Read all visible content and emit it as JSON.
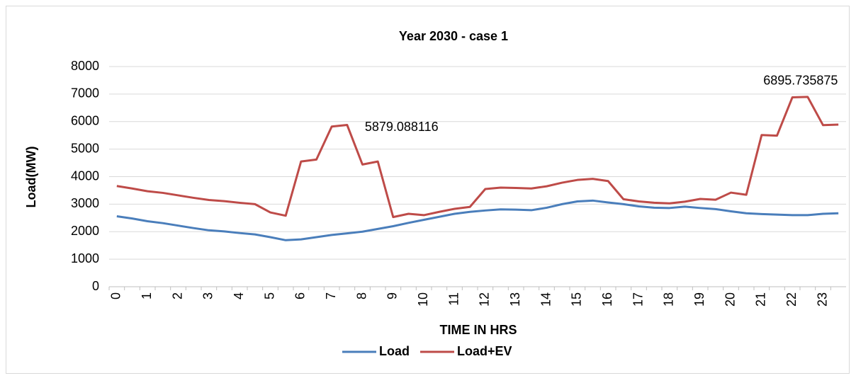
{
  "chart_data": {
    "type": "line",
    "title": "Year 2030 - case 1",
    "x_label": "TIME IN HRS",
    "y_label": "Load(MW)",
    "categories": [
      "0",
      null,
      "1",
      null,
      "2",
      null,
      "3",
      null,
      "4",
      null,
      "5",
      null,
      "6",
      null,
      "7",
      null,
      "8",
      null,
      "9",
      null,
      "10",
      null,
      "11",
      null,
      "12",
      null,
      "13",
      null,
      "14",
      null,
      "15",
      null,
      "16",
      null,
      "17",
      null,
      "18",
      null,
      "19",
      null,
      "20",
      null,
      "21",
      null,
      "22",
      null,
      "23",
      null
    ],
    "series": [
      {
        "name": "Load",
        "color": "#4a7ebb",
        "values": [
          2560,
          2480,
          2380,
          2310,
          2220,
          2130,
          2050,
          2010,
          1950,
          1900,
          1800,
          1690,
          1720,
          1800,
          1880,
          1940,
          2000,
          2100,
          2200,
          2320,
          2430,
          2540,
          2650,
          2720,
          2770,
          2810,
          2800,
          2780,
          2870,
          3000,
          3100,
          3130,
          3060,
          3000,
          2920,
          2870,
          2860,
          2910,
          2860,
          2820,
          2740,
          2670,
          2640,
          2620,
          2600,
          2600,
          2650,
          2670
        ]
      },
      {
        "name": "Load+EV",
        "color": "#be4b48",
        "values": [
          3660,
          3570,
          3470,
          3410,
          3320,
          3230,
          3150,
          3110,
          3050,
          3000,
          2700,
          2580,
          4550,
          4620,
          5820,
          5879.088116,
          4440,
          4550,
          2530,
          2650,
          2600,
          2720,
          2830,
          2900,
          3550,
          3600,
          3590,
          3570,
          3650,
          3780,
          3880,
          3920,
          3840,
          3180,
          3100,
          3050,
          3030,
          3090,
          3190,
          3160,
          3420,
          3340,
          5510,
          5490,
          6880,
          6895.735875,
          5870,
          5890
        ],
        "value_labels": [
          null,
          null,
          null,
          null,
          null,
          null,
          null,
          null,
          null,
          null,
          null,
          null,
          null,
          null,
          null,
          "5879.088116",
          null,
          null,
          null,
          null,
          null,
          null,
          null,
          null,
          null,
          null,
          null,
          null,
          null,
          null,
          null,
          null,
          null,
          null,
          null,
          null,
          null,
          null,
          null,
          null,
          null,
          null,
          null,
          null,
          null,
          "6895.735875",
          null,
          null
        ]
      }
    ],
    "ylim": [
      0,
      8000
    ],
    "yticks": [
      0,
      1000,
      2000,
      3000,
      4000,
      5000,
      6000,
      7000,
      8000
    ],
    "grid": true,
    "legend": "bottom"
  }
}
